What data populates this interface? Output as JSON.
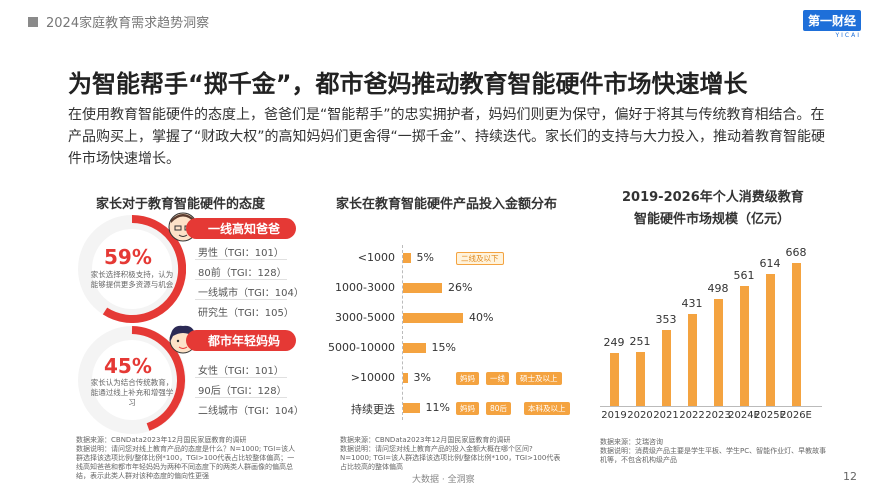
{
  "header": {
    "report_title": "2024家庭教育需求趋势洞察",
    "logo_main": "第一财经",
    "logo_sub": "YICAI"
  },
  "main_title": "为智能帮手“掷千金”，都市爸妈推动教育智能硬件市场快速增长",
  "paragraph": "在使用教育智能硬件的态度上，爸爸们是“智能帮手”的忠实拥护者，妈妈们则更为保守，偏好于将其与传统教育相结合。在产品购买上，掌握了“财政大权”的高知妈妈们更舍得“一掷千金”、持续迭代。家长们的支持与大力投入，推动着教育智能硬件市场快速增长。",
  "left_panel": {
    "title": "家长对于教育智能硬件的态度",
    "groups": [
      {
        "label": "一线高知爸爸",
        "percent": "59%",
        "desc": "家长选择积极支持，认为能够提供更多资源与机会",
        "tgi": [
          "男性（TGI：101）",
          "80前（TGI：128）",
          "一线城市（TGI：104）",
          "研究生（TGI：105）"
        ]
      },
      {
        "label": "都市年轻妈妈",
        "percent": "45%",
        "desc": "家长认为结合传统教育，能通过线上补充和增强学习",
        "tgi": [
          "女性（TGI：101）",
          "90后（TGI：128）",
          "二线城市（TGI：104）"
        ]
      }
    ],
    "source": "数据来源：CBNData2023年12月国民家庭教育的调研\n数据说明：请问您对线上教育产品的态度是什么？N=1000; TGI=该人群选择该选项比例/整体比例*100，TGI>100代表占比较整体偏高；一线高知爸爸和都市年轻妈妈为两种不同态度下的两类人群画像的偏高总结，表示此类人群对该种态度的偏向性更强"
  },
  "middle_panel": {
    "title": "家长在教育智能硬件产品投入金额分布",
    "source": "数据来源：CBNData2023年12月国民家庭教育的调研\n数据说明：请问您对线上教育产品的投入金额大概在哪个区间? N=1000; TGI=该人群选择该选项比例/整体比例*100，TGI>100代表占比较高的整体偏高"
  },
  "right_panel": {
    "title_line1": "2019-2026年个人消费级教育",
    "title_line2": "智能硬件市场规模（亿元）",
    "source": "数据来源：艾瑞咨询\n数据说明：消费级产品主要是学生平板、学生PC、智能作业灯、早教故事机等，不包含机构级产品"
  },
  "footer": {
    "brand": "大数据 · 全洞察",
    "page": "12"
  },
  "colors": {
    "accent_red": "#e53935",
    "bar_orange": "#f4a340"
  },
  "chart_data": [
    {
      "type": "bar",
      "orientation": "horizontal",
      "title": "家长在教育智能硬件产品投入金额分布",
      "categories": [
        "<1000",
        "1000-3000",
        "3000-5000",
        "5000-10000",
        ">10000",
        "持续更迭"
      ],
      "values": [
        5,
        26,
        40,
        15,
        3,
        11
      ],
      "value_labels": [
        "5%",
        "26%",
        "40%",
        "15%",
        "3%",
        "11%"
      ],
      "annotations": [
        [
          "二线及以下"
        ],
        [],
        [],
        [],
        [
          "妈妈",
          "一线",
          "硕士及以上"
        ],
        [
          "妈妈",
          "80后",
          "本科及以上"
        ]
      ]
    },
    {
      "type": "bar",
      "orientation": "vertical",
      "title": "2019-2026年个人消费级教育智能硬件市场规模（亿元）",
      "categories": [
        "2019",
        "2020",
        "2021",
        "2022",
        "2023",
        "2024E",
        "2025E",
        "2026E"
      ],
      "values": [
        249,
        251,
        353,
        431,
        498,
        561,
        614,
        668
      ]
    }
  ]
}
